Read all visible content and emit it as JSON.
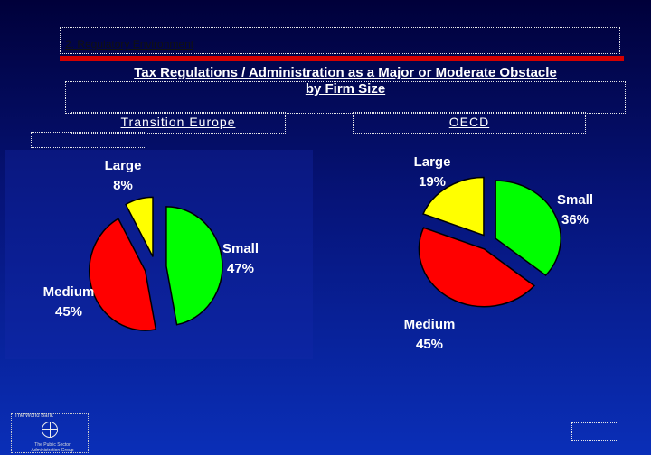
{
  "header": {
    "section_label": "2. Regulatory Environment",
    "title_line1": "Tax Regulations / Administration as a Major or Moderate Obstacle",
    "title_line2": "by Firm Size",
    "accent_color": "#d40000"
  },
  "footer": {
    "logo_line1": "The World Bank",
    "logo_line2": "The Public Sector",
    "logo_line3": "Administration Group",
    "logo_icon": "globe-icon"
  },
  "chart_data": [
    {
      "type": "pie",
      "title": "Transition Europe",
      "slices": [
        {
          "label": "Small",
          "value": 47,
          "display": "47%",
          "color": "#00ff00"
        },
        {
          "label": "Medium",
          "value": 45,
          "display": "45%",
          "color": "#ff0000"
        },
        {
          "label": "Large",
          "value": 8,
          "display": "8%",
          "color": "#ffff00"
        }
      ]
    },
    {
      "type": "pie",
      "title": "OECD",
      "slices": [
        {
          "label": "Small",
          "value": 36,
          "display": "36%",
          "color": "#00ff00"
        },
        {
          "label": "Medium",
          "value": 45,
          "display": "45%",
          "color": "#ff0000"
        },
        {
          "label": "Large",
          "value": 19,
          "display": "19%",
          "color": "#ffff00"
        }
      ]
    }
  ]
}
